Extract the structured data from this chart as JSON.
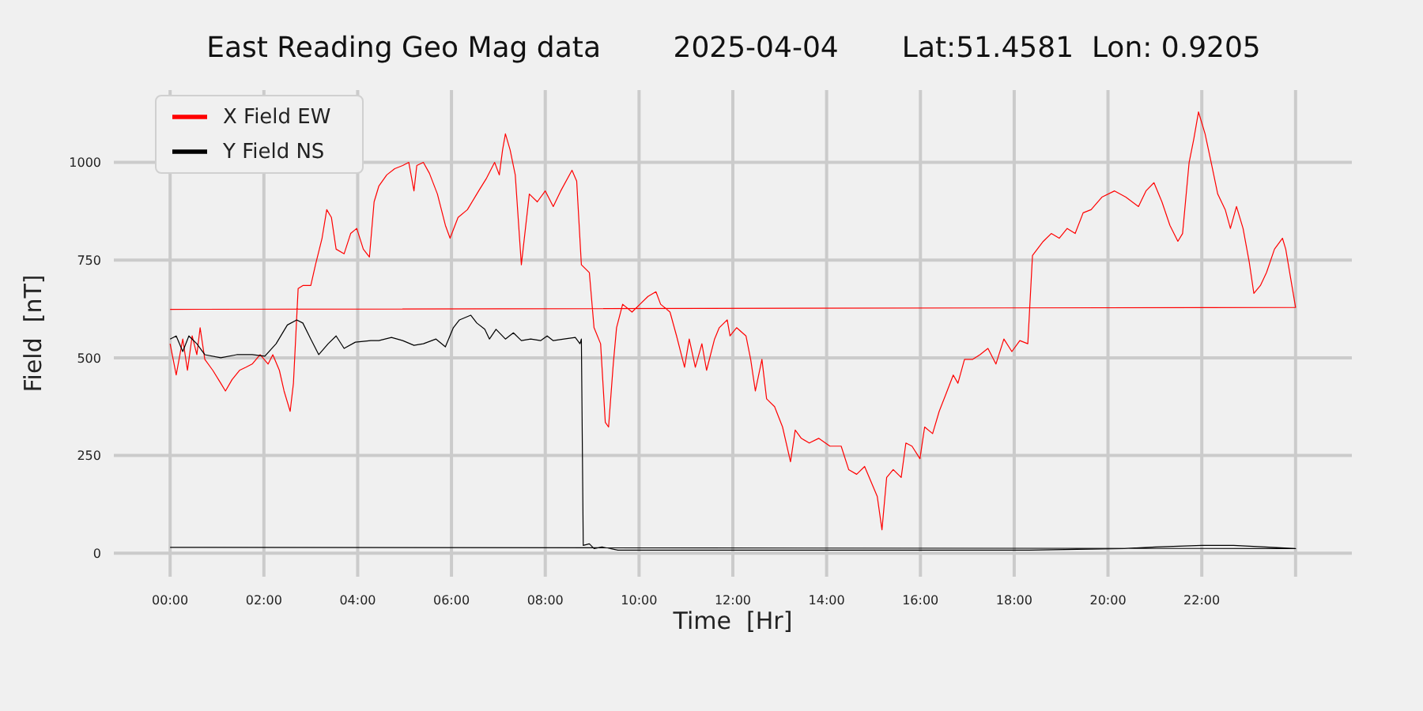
{
  "chart_data": {
    "type": "line",
    "title": "East Reading Geo Mag data        2025-04-04       Lat:51.4581  Lon: 0.9205",
    "xlabel": "Time  [Hr]",
    "ylabel": "Field  [nT]",
    "xlim": [
      -1.2,
      25.2
    ],
    "ylim": [
      -60,
      1185
    ],
    "xticks": [
      {
        "value": 0,
        "label": "00:00"
      },
      {
        "value": 2,
        "label": "02:00"
      },
      {
        "value": 4,
        "label": "04:00"
      },
      {
        "value": 6,
        "label": "06:00"
      },
      {
        "value": 8,
        "label": "08:00"
      },
      {
        "value": 10,
        "label": "10:00"
      },
      {
        "value": 12,
        "label": "12:00"
      },
      {
        "value": 14,
        "label": "14:00"
      },
      {
        "value": 16,
        "label": "16:00"
      },
      {
        "value": 18,
        "label": "18:00"
      },
      {
        "value": 20,
        "label": "20:00"
      },
      {
        "value": 22,
        "label": "22:00"
      },
      {
        "value": 24,
        "label": null
      }
    ],
    "yticks": [
      0,
      250,
      500,
      750,
      1000
    ],
    "grid": true,
    "legend": "top left",
    "series": [
      {
        "name": "X Field EW",
        "color": "#ff0000",
        "x": [
          0,
          0.13,
          0.27,
          0.37,
          0.47,
          0.57,
          0.64,
          0.74,
          0.91,
          1.08,
          1.18,
          1.32,
          1.48,
          1.62,
          1.75,
          1.92,
          2.09,
          2.19,
          2.33,
          2.43,
          2.56,
          2.63,
          2.73,
          2.83,
          3.0,
          3.1,
          3.24,
          3.34,
          3.44,
          3.54,
          3.71,
          3.85,
          3.98,
          4.12,
          4.25,
          4.35,
          4.45,
          4.62,
          4.79,
          4.96,
          5.09,
          5.2,
          5.26,
          5.4,
          5.53,
          5.7,
          5.87,
          5.97,
          6.14,
          6.34,
          6.58,
          6.75,
          6.92,
          7.02,
          7.09,
          7.15,
          7.25,
          7.36,
          7.49,
          7.66,
          7.83,
          8.0,
          8.17,
          8.33,
          8.57,
          8.67,
          8.77,
          8.94,
          9.04,
          9.18,
          9.28,
          9.35,
          9.45,
          9.52,
          9.65,
          9.85,
          10.02,
          10.19,
          10.36,
          10.46,
          10.66,
          10.8,
          10.97,
          11.07,
          11.2,
          11.34,
          11.44,
          11.61,
          11.71,
          11.88,
          11.94,
          12.08,
          12.28,
          12.38,
          12.48,
          12.62,
          12.72,
          12.89,
          13.06,
          13.23,
          13.33,
          13.46,
          13.63,
          13.83,
          14.07,
          14.31,
          14.47,
          14.64,
          14.81,
          15.08,
          15.18,
          15.28,
          15.42,
          15.59,
          15.69,
          15.82,
          15.99,
          16.09,
          16.26,
          16.4,
          16.53,
          16.7,
          16.8,
          16.94,
          17.11,
          17.27,
          17.44,
          17.61,
          17.78,
          17.95,
          18.12,
          18.29,
          18.39,
          18.62,
          18.79,
          18.96,
          19.13,
          19.3,
          19.47,
          19.64,
          19.87,
          20.14,
          20.38,
          20.65,
          20.81,
          20.98,
          21.15,
          21.32,
          21.49,
          21.59,
          21.73,
          21.83,
          21.93,
          22.07,
          22.2,
          22.34,
          22.5,
          22.61,
          22.74,
          22.88,
          23.01,
          23.11,
          23.25,
          23.38,
          23.55,
          23.72,
          23.79,
          24.0,
          0
        ],
        "values": [
          536,
          456,
          548,
          468,
          556,
          508,
          577,
          496,
          468,
          435,
          415,
          444,
          468,
          476,
          484,
          508,
          484,
          508,
          468,
          415,
          363,
          435,
          677,
          685,
          685,
          738,
          806,
          879,
          859,
          778,
          766,
          818,
          831,
          778,
          758,
          899,
          939,
          968,
          984,
          992,
          1000,
          927,
          992,
          1000,
          972,
          919,
          839,
          806,
          859,
          879,
          927,
          960,
          1000,
          968,
          1032,
          1073,
          1032,
          968,
          738,
          919,
          899,
          927,
          887,
          927,
          980,
          952,
          738,
          718,
          577,
          536,
          335,
          323,
          484,
          577,
          637,
          617,
          637,
          657,
          669,
          637,
          617,
          556,
          476,
          548,
          476,
          536,
          468,
          548,
          577,
          597,
          556,
          577,
          556,
          496,
          415,
          496,
          395,
          375,
          323,
          234,
          315,
          294,
          282,
          294,
          274,
          274,
          214,
          202,
          222,
          145,
          60,
          194,
          214,
          194,
          282,
          274,
          242,
          323,
          306,
          363,
          403,
          456,
          435,
          496,
          496,
          508,
          524,
          484,
          548,
          516,
          544,
          536,
          762,
          798,
          818,
          806,
          831,
          818,
          871,
          879,
          911,
          927,
          911,
          887,
          927,
          948,
          899,
          839,
          798,
          818,
          1000,
          1060,
          1129,
          1073,
          1000,
          919,
          879,
          831,
          887,
          831,
          746,
          665,
          685,
          718,
          778,
          806,
          778,
          629,
          624
        ]
      },
      {
        "name": "Y Field NS",
        "color": "#000000",
        "x": [
          0,
          0.13,
          0.27,
          0.4,
          0.57,
          0.74,
          1.08,
          1.42,
          1.75,
          2.02,
          2.26,
          2.5,
          2.7,
          2.83,
          3.0,
          3.17,
          3.37,
          3.54,
          3.71,
          3.95,
          4.28,
          4.45,
          4.72,
          4.96,
          5.2,
          5.4,
          5.67,
          5.87,
          6.04,
          6.17,
          6.41,
          6.54,
          6.71,
          6.81,
          6.95,
          7.15,
          7.32,
          7.49,
          7.69,
          7.9,
          8.04,
          8.17,
          8.4,
          8.64,
          8.74,
          8.77,
          8.81,
          8.94,
          9.04,
          9.21,
          9.55,
          11.58,
          14.96,
          18.33,
          20.35,
          21.02,
          22.0,
          22.68,
          23.35,
          24,
          0
        ],
        "values": [
          548,
          556,
          516,
          556,
          536,
          508,
          500,
          508,
          508,
          504,
          536,
          584,
          597,
          589,
          548,
          508,
          536,
          556,
          524,
          540,
          544,
          544,
          552,
          544,
          532,
          536,
          548,
          528,
          577,
          597,
          609,
          589,
          573,
          548,
          573,
          548,
          564,
          544,
          548,
          544,
          556,
          544,
          548,
          552,
          536,
          548,
          20,
          24,
          12,
          16,
          8,
          8,
          8,
          8,
          12,
          16,
          20,
          20,
          16,
          12,
          15
        ]
      }
    ]
  }
}
